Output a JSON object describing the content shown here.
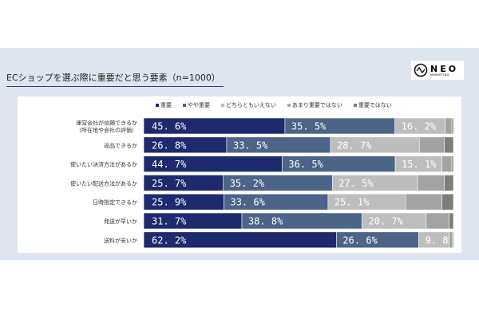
{
  "title": "ECショップを選ぶ際に重要だと思う要素（n=1000）",
  "logo": {
    "text": "NEO",
    "sub": "MARKETING"
  },
  "chart_data": {
    "type": "bar",
    "orientation": "horizontal",
    "stacked": true,
    "xlim": [
      0,
      100
    ],
    "legend_position": "top",
    "categories": [
      "運営会社が信頼できるか\n（所在地や会社の評価）",
      "返品できるか",
      "使いたい決済方法があるか",
      "使いたい配送方法があるか",
      "日時指定できるか",
      "発送が早いか",
      "送料が安いか"
    ],
    "series": [
      {
        "name": "重要",
        "color": "#1d2a6d",
        "values": [
          45.6,
          26.8,
          44.7,
          25.7,
          25.9,
          31.7,
          62.2
        ]
      },
      {
        "name": "やや重要",
        "color": "#4b6488",
        "values": [
          35.5,
          33.5,
          36.5,
          35.2,
          33.6,
          38.8,
          26.6
        ]
      },
      {
        "name": "どちらともいえない",
        "color": "#bdbdbd",
        "values": [
          16.2,
          28.7,
          15.1,
          27.5,
          25.1,
          20.7,
          9.8
        ]
      },
      {
        "name": "あまり重要ではない",
        "color": "#a3a3a3",
        "values": [
          2.2,
          8.1,
          3.2,
          8.7,
          11.7,
          7.4,
          1.0
        ]
      },
      {
        "name": "重要ではない",
        "color": "#7d7d7d",
        "values": [
          0.5,
          2.9,
          0.5,
          2.9,
          3.7,
          1.4,
          0.4
        ]
      }
    ],
    "labeled_series": [
      0,
      1,
      2
    ],
    "label_format": "%"
  }
}
